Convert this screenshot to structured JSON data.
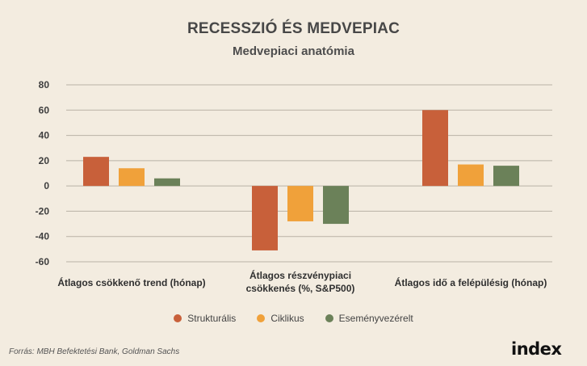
{
  "header": {
    "title": "RECESSZIÓ ÉS MEDVEPIAC",
    "subtitle": "Medvepiaci anatómia"
  },
  "footer": {
    "source": "Forrás: MBH Befektetési Bank, Goldman Sachs",
    "logo": "index"
  },
  "colors": {
    "strukturalis": "#c8603a",
    "ciklikus": "#f0a13a",
    "esemenyvezerelt": "#6b8159",
    "grid": "#b9b2a6",
    "background": "#f3ece0"
  },
  "chart_data": {
    "type": "bar",
    "title": "Medvepiaci anatómia",
    "categories": [
      "Átlagos csökkenő trend (hónap)",
      "Átlagos részvénypiaci csökkenés (%, S&P500)",
      "Átlagos idő a felépülésig (hónap)"
    ],
    "category_lines": [
      [
        "Átlagos csökkenő trend (hónap)"
      ],
      [
        "Átlagos részvénypiaci",
        "csökkenés (%, S&P500)"
      ],
      [
        "Átlagos idő a felépülésig (hónap)"
      ]
    ],
    "series": [
      {
        "name": "Strukturális",
        "color": "#c8603a",
        "values": [
          23,
          -51,
          60
        ]
      },
      {
        "name": "Ciklikus",
        "color": "#f0a13a",
        "values": [
          14,
          -28,
          17
        ]
      },
      {
        "name": "Eseményvezérelt",
        "color": "#6b8159",
        "values": [
          6,
          -30,
          16
        ]
      }
    ],
    "ylim": [
      -60,
      80
    ],
    "yticks": [
      80,
      60,
      40,
      20,
      0,
      -20,
      -40,
      -60
    ],
    "grid": true,
    "legend": "bottom"
  }
}
